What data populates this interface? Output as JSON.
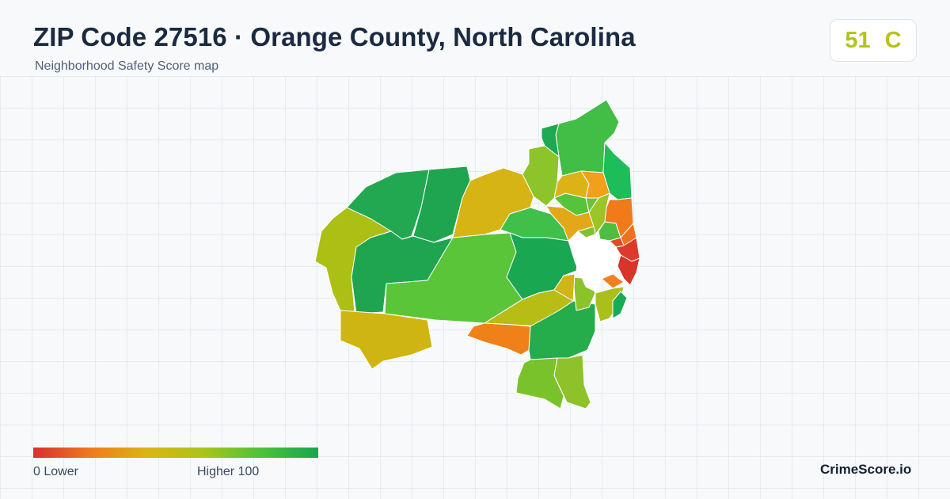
{
  "header": {
    "title": "ZIP Code 27516 · Orange County, North Carolina",
    "subtitle": "Neighborhood Safety Score map"
  },
  "score": {
    "value": "51",
    "grade": "C",
    "color": "#b3c41b"
  },
  "legend": {
    "min_label": "0  Lower",
    "max_label": "Higher  100",
    "colors": [
      "#d63030",
      "#f07a1c",
      "#dcb412",
      "#a9c418",
      "#4cc23a",
      "#16a650"
    ]
  },
  "brand": "CrimeScore.io",
  "map": {
    "highlight_fill": "#ffffff",
    "border_color": "#ffffff",
    "regions": [
      {
        "name": "nw-a",
        "fill": "#23a852"
      },
      {
        "name": "nw-b",
        "fill": "#1fa550"
      },
      {
        "name": "west-lobe",
        "fill": "#acbf14"
      },
      {
        "name": "west-central",
        "fill": "#1fa550"
      },
      {
        "name": "south-west",
        "fill": "#cfb511"
      },
      {
        "name": "center-large",
        "fill": "#5bc53a"
      },
      {
        "name": "north-yellow",
        "fill": "#d6b414"
      },
      {
        "name": "north-green",
        "fill": "#40c04a"
      },
      {
        "name": "east-green",
        "fill": "#19a752"
      },
      {
        "name": "south-center-yellow",
        "fill": "#b8bd16"
      },
      {
        "name": "south-orange",
        "fill": "#f08118"
      },
      {
        "name": "south-green",
        "fill": "#25ad4c"
      },
      {
        "name": "se-lime-a",
        "fill": "#79c22c"
      },
      {
        "name": "se-lime-b",
        "fill": "#8dc22a"
      },
      {
        "name": "ne-strip",
        "fill": "#8cc42a"
      },
      {
        "name": "ne-top",
        "fill": "#42bd46"
      },
      {
        "name": "ne-top-tip",
        "fill": "#1ea850"
      },
      {
        "name": "ne-east-band",
        "fill": "#1dbd5a"
      },
      {
        "name": "ne-mid-green",
        "fill": "#55c33c"
      },
      {
        "name": "ne-yellow-1",
        "fill": "#dcb317"
      },
      {
        "name": "ne-orange-1",
        "fill": "#f29f19"
      },
      {
        "name": "ne-yellow-2",
        "fill": "#e3a817"
      },
      {
        "name": "ne-lime-1",
        "fill": "#9bc426"
      },
      {
        "name": "ne-lime-2",
        "fill": "#7fc22e"
      },
      {
        "name": "ne-lime-3",
        "fill": "#6cc234"
      },
      {
        "name": "ne-green-small",
        "fill": "#4dbf40"
      },
      {
        "name": "east-orange-1",
        "fill": "#f07a1c"
      },
      {
        "name": "east-orange-2",
        "fill": "#f0711e"
      },
      {
        "name": "east-red-1",
        "fill": "#dc3a2c"
      },
      {
        "name": "east-red-2",
        "fill": "#d93429"
      },
      {
        "name": "east-red-3",
        "fill": "#e04a27"
      },
      {
        "name": "south-east-orange",
        "fill": "#f28020"
      },
      {
        "name": "south-east-lime",
        "fill": "#a9c01a"
      },
      {
        "name": "south-east-green",
        "fill": "#19aa55"
      },
      {
        "name": "center-east-lime",
        "fill": "#8bc42a"
      },
      {
        "name": "center-east-yellow",
        "fill": "#d1b416"
      }
    ]
  }
}
